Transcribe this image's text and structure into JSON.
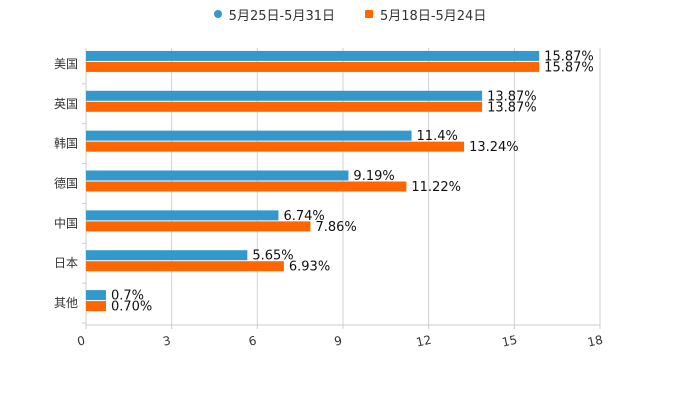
{
  "chart_data": {
    "type": "bar",
    "orientation": "horizontal",
    "title": "",
    "xlabel": "",
    "ylabel": "",
    "xlim": [
      0,
      18
    ],
    "ticks": [
      0,
      3,
      6,
      9,
      12,
      15,
      18
    ],
    "tick_labels": [
      "0",
      "3",
      "6",
      "9",
      "12",
      "15",
      "18"
    ],
    "grid": true,
    "legend_position": "top-center",
    "categories": [
      "美国",
      "英国",
      "韩国",
      "德国",
      "中国",
      "日本",
      "其他"
    ],
    "series": [
      {
        "name": "5月25日-5月31日",
        "color": "#3399cc",
        "values": [
          15.87,
          13.87,
          11.4,
          9.19,
          6.74,
          5.65,
          0.7
        ],
        "labels": [
          "15.87%",
          "13.87%",
          "11.4%",
          "9.19%",
          "6.74%",
          "5.65%",
          "0.7%"
        ]
      },
      {
        "name": "5月18日-5月24日",
        "color": "#ff6600",
        "values": [
          15.87,
          13.87,
          13.24,
          11.22,
          7.86,
          6.93,
          0.7
        ],
        "labels": [
          "15.87%",
          "13.87%",
          "13.24%",
          "11.22%",
          "7.86%",
          "6.93%",
          "0.70%"
        ]
      }
    ]
  }
}
